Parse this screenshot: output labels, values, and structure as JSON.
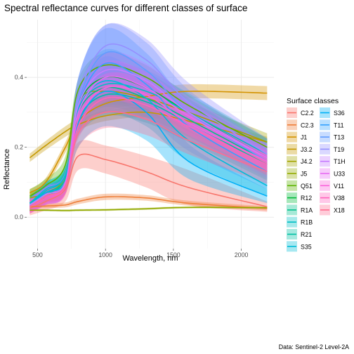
{
  "chart_data": {
    "type": "line",
    "title": "Spectral reflectance curves for different classes of surface",
    "xlabel": "Wavelength, nm",
    "ylabel": "Reflectance",
    "caption": "Data: Sentinel-2 Level-2A",
    "xlim": [
      420,
      2240
    ],
    "ylim": [
      -0.09,
      0.565
    ],
    "xticks": [
      500,
      1000,
      1500,
      2000
    ],
    "yticks": [
      0.0,
      0.2,
      0.4
    ],
    "ytick_labels": [
      "0.0",
      "0.2",
      "0.4"
    ],
    "grid": true,
    "legend_title": "Surface classes",
    "legend_position": "right",
    "series": [
      {
        "name": "C2.2",
        "color": "#F8766D",
        "x": [
          443,
          560,
          705,
          800,
          1000,
          1300,
          1610,
          2190
        ],
        "y": [
          0.025,
          0.045,
          0.08,
          0.175,
          0.165,
          0.13,
          0.085,
          0.03
        ],
        "band": [
          0.02,
          0.025,
          0.035,
          0.04,
          0.04,
          0.045,
          0.05,
          0.015
        ]
      },
      {
        "name": "C2.3",
        "color": "#EE7F3A",
        "x": [
          443,
          560,
          705,
          800,
          1000,
          1300,
          1610,
          2190
        ],
        "y": [
          0.03,
          0.032,
          0.035,
          0.045,
          0.058,
          0.055,
          0.04,
          0.025
        ],
        "band": [
          0.006,
          0.006,
          0.007,
          0.008,
          0.009,
          0.008,
          0.007,
          0.006
        ]
      },
      {
        "name": "J1",
        "color": "#D39200",
        "x": [
          443,
          560,
          705,
          800,
          1000,
          1300,
          1610,
          2190
        ],
        "y": [
          0.07,
          0.1,
          0.2,
          0.275,
          0.325,
          0.345,
          0.36,
          0.355
        ],
        "band": [
          0.01,
          0.012,
          0.015,
          0.02,
          0.022,
          0.02,
          0.02,
          0.02
        ]
      },
      {
        "name": "J3.2",
        "color": "#C59900",
        "x": [
          443,
          560,
          705,
          800,
          1000,
          1300,
          1610,
          2190
        ],
        "y": [
          0.17,
          0.205,
          0.245,
          0.265,
          0.29,
          0.3,
          0.275,
          0.215
        ],
        "band": [
          0.012,
          0.013,
          0.015,
          0.015,
          0.015,
          0.015,
          0.015,
          0.015
        ]
      },
      {
        "name": "J4.2",
        "color": "#A3A500",
        "x": [
          443,
          560,
          705,
          800,
          1000,
          1300,
          1610,
          2190
        ],
        "y": [
          0.055,
          0.07,
          0.12,
          0.33,
          0.36,
          0.34,
          0.3,
          0.215
        ],
        "band": [
          0.015,
          0.018,
          0.02,
          0.025,
          0.03,
          0.03,
          0.028,
          0.025
        ]
      },
      {
        "name": "J5",
        "color": "#93AA00",
        "x": [
          443,
          560,
          705,
          800,
          1000,
          1300,
          1610,
          2190
        ],
        "y": [
          0.02,
          0.02,
          0.019,
          0.02,
          0.021,
          0.024,
          0.028,
          0.027
        ],
        "band": [
          0.003,
          0.003,
          0.003,
          0.003,
          0.003,
          0.003,
          0.003,
          0.003
        ]
      },
      {
        "name": "Q51",
        "color": "#5BB300",
        "x": [
          443,
          560,
          705,
          800,
          1000,
          1300,
          1610,
          2190
        ],
        "y": [
          0.06,
          0.09,
          0.15,
          0.365,
          0.435,
          0.4,
          0.32,
          0.2
        ],
        "band": [
          0.02,
          0.02,
          0.025,
          0.03,
          0.035,
          0.035,
          0.03,
          0.025
        ]
      },
      {
        "name": "R12",
        "color": "#00BA38",
        "x": [
          443,
          560,
          705,
          800,
          1000,
          1300,
          1610,
          2190
        ],
        "y": [
          0.03,
          0.06,
          0.1,
          0.32,
          0.4,
          0.37,
          0.3,
          0.17
        ],
        "band": [
          0.015,
          0.02,
          0.025,
          0.04,
          0.045,
          0.045,
          0.04,
          0.03
        ]
      },
      {
        "name": "R1A",
        "color": "#00C08B",
        "x": [
          443,
          560,
          705,
          800,
          1000,
          1300,
          1610,
          2190
        ],
        "y": [
          0.035,
          0.065,
          0.11,
          0.3,
          0.37,
          0.34,
          0.28,
          0.16
        ],
        "band": [
          0.018,
          0.02,
          0.025,
          0.045,
          0.055,
          0.055,
          0.05,
          0.04
        ]
      },
      {
        "name": "R1B",
        "color": "#00BFC4",
        "x": [
          443,
          560,
          705,
          800,
          1000,
          1300,
          1610,
          2190
        ],
        "y": [
          0.04,
          0.075,
          0.12,
          0.31,
          0.38,
          0.36,
          0.3,
          0.18
        ],
        "band": [
          0.02,
          0.025,
          0.03,
          0.05,
          0.06,
          0.06,
          0.055,
          0.045
        ]
      },
      {
        "name": "R21",
        "color": "#00C1A3",
        "x": [
          443,
          560,
          705,
          800,
          1000,
          1300,
          1610,
          2190
        ],
        "y": [
          0.04,
          0.07,
          0.11,
          0.28,
          0.35,
          0.33,
          0.27,
          0.15
        ],
        "band": [
          0.02,
          0.025,
          0.03,
          0.05,
          0.06,
          0.06,
          0.055,
          0.045
        ]
      },
      {
        "name": "S35",
        "color": "#00BCD8",
        "x": [
          443,
          560,
          705,
          800,
          1000,
          1300,
          1610,
          2190
        ],
        "y": [
          0.04,
          0.08,
          0.12,
          0.31,
          0.39,
          0.34,
          0.22,
          0.09
        ],
        "band": [
          0.015,
          0.02,
          0.03,
          0.06,
          0.09,
          0.08,
          0.06,
          0.03
        ]
      },
      {
        "name": "S36",
        "color": "#00B0F6",
        "x": [
          443,
          560,
          705,
          800,
          1000,
          1300,
          1610,
          2190
        ],
        "y": [
          0.035,
          0.07,
          0.1,
          0.27,
          0.36,
          0.3,
          0.16,
          0.06
        ],
        "band": [
          0.015,
          0.02,
          0.03,
          0.07,
          0.1,
          0.08,
          0.05,
          0.02
        ]
      },
      {
        "name": "T11",
        "color": "#35A2FF",
        "x": [
          443,
          560,
          705,
          800,
          1000,
          1300,
          1610,
          2190
        ],
        "y": [
          0.035,
          0.065,
          0.1,
          0.32,
          0.44,
          0.38,
          0.26,
          0.13
        ],
        "band": [
          0.02,
          0.025,
          0.03,
          0.08,
          0.1,
          0.09,
          0.07,
          0.05
        ]
      },
      {
        "name": "T13",
        "color": "#619CFF",
        "x": [
          443,
          560,
          705,
          800,
          1000,
          1300,
          1610,
          2190
        ],
        "y": [
          0.035,
          0.06,
          0.1,
          0.33,
          0.47,
          0.42,
          0.3,
          0.16
        ],
        "band": [
          0.02,
          0.025,
          0.03,
          0.07,
          0.08,
          0.08,
          0.065,
          0.05
        ]
      },
      {
        "name": "T19",
        "color": "#9590FF",
        "x": [
          443,
          560,
          705,
          800,
          1000,
          1300,
          1610,
          2190
        ],
        "y": [
          0.035,
          0.06,
          0.1,
          0.34,
          0.49,
          0.45,
          0.33,
          0.18
        ],
        "band": [
          0.02,
          0.025,
          0.03,
          0.06,
          0.06,
          0.06,
          0.055,
          0.045
        ]
      },
      {
        "name": "T1H",
        "color": "#C77CFF",
        "x": [
          443,
          560,
          705,
          800,
          1000,
          1300,
          1610,
          2190
        ],
        "y": [
          0.035,
          0.065,
          0.1,
          0.32,
          0.42,
          0.39,
          0.3,
          0.17
        ],
        "band": [
          0.02,
          0.025,
          0.03,
          0.05,
          0.05,
          0.05,
          0.045,
          0.04
        ]
      },
      {
        "name": "U33",
        "color": "#E76BF3",
        "x": [
          443,
          560,
          705,
          800,
          1000,
          1300,
          1610,
          2190
        ],
        "y": [
          0.03,
          0.06,
          0.095,
          0.3,
          0.4,
          0.37,
          0.29,
          0.17
        ],
        "band": [
          0.02,
          0.025,
          0.03,
          0.04,
          0.045,
          0.045,
          0.04,
          0.035
        ]
      },
      {
        "name": "V11",
        "color": "#FA62DB",
        "x": [
          443,
          560,
          705,
          800,
          1000,
          1300,
          1610,
          2190
        ],
        "y": [
          0.03,
          0.055,
          0.09,
          0.28,
          0.37,
          0.35,
          0.27,
          0.16
        ],
        "band": [
          0.02,
          0.02,
          0.025,
          0.035,
          0.04,
          0.04,
          0.035,
          0.03
        ]
      },
      {
        "name": "V38",
        "color": "#FF62BC",
        "x": [
          443,
          560,
          705,
          800,
          1000,
          1300,
          1610,
          2190
        ],
        "y": [
          0.03,
          0.055,
          0.09,
          0.26,
          0.34,
          0.32,
          0.26,
          0.15
        ],
        "band": [
          0.02,
          0.02,
          0.025,
          0.035,
          0.04,
          0.04,
          0.035,
          0.03
        ]
      },
      {
        "name": "X18",
        "color": "#FF6C91",
        "x": [
          443,
          560,
          705,
          800,
          1000,
          1300,
          1610,
          2190
        ],
        "y": [
          0.03,
          0.06,
          0.09,
          0.24,
          0.3,
          0.28,
          0.22,
          0.13
        ],
        "band": [
          0.02,
          0.02,
          0.025,
          0.04,
          0.045,
          0.045,
          0.04,
          0.035
        ]
      }
    ]
  }
}
